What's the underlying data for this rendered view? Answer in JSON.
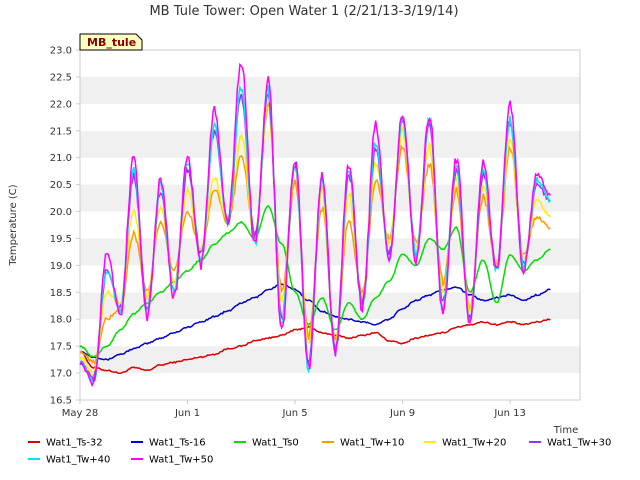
{
  "chart_data": {
    "type": "line",
    "title": "MB Tule Tower: Open Water 1 (2/21/13-3/19/14)",
    "xlabel": "Time",
    "ylabel": "Temperature (C)",
    "badge": "MB_tule",
    "xlim": [
      "May 28",
      "Jun 15"
    ],
    "ylim": [
      16.5,
      23.0
    ],
    "x_ticks": [
      "May 28",
      "Jun 1",
      "Jun 5",
      "Jun 9",
      "Jun 13"
    ],
    "y_ticks": [
      "16.5",
      "17.0",
      "17.5",
      "18.0",
      "18.5",
      "19.0",
      "19.5",
      "20.0",
      "20.5",
      "21.0",
      "21.5",
      "22.0",
      "22.5",
      "23.0"
    ],
    "grid": "horizontal bands",
    "legend_position": "bottom",
    "x_days": [
      0,
      0.5,
      1,
      1.5,
      2,
      2.5,
      3,
      3.5,
      4,
      4.5,
      5,
      5.5,
      6,
      6.5,
      7,
      7.5,
      8,
      8.5,
      9,
      9.5,
      10,
      10.5,
      11,
      11.5,
      12,
      12.5,
      13,
      13.5,
      14,
      14.5,
      15,
      15.5,
      16,
      16.5,
      17,
      17.5
    ],
    "series": [
      {
        "name": "Wat1_Ts-32",
        "color": "#dd0000",
        "values": [
          17.4,
          17.1,
          17.05,
          17.0,
          17.1,
          17.05,
          17.15,
          17.2,
          17.25,
          17.3,
          17.35,
          17.45,
          17.5,
          17.6,
          17.65,
          17.7,
          17.8,
          17.85,
          17.75,
          17.7,
          17.65,
          17.7,
          17.75,
          17.6,
          17.55,
          17.65,
          17.7,
          17.75,
          17.85,
          17.9,
          17.95,
          17.9,
          17.95,
          17.9,
          17.95,
          18.0
        ]
      },
      {
        "name": "Wat1_Ts-16",
        "color": "#0000cc",
        "values": [
          17.4,
          17.3,
          17.25,
          17.35,
          17.45,
          17.55,
          17.65,
          17.75,
          17.85,
          17.95,
          18.05,
          18.15,
          18.3,
          18.4,
          18.55,
          18.65,
          18.55,
          18.35,
          18.15,
          18.05,
          18.0,
          17.95,
          17.9,
          18.0,
          18.2,
          18.35,
          18.45,
          18.55,
          18.6,
          18.45,
          18.35,
          18.4,
          18.45,
          18.35,
          18.45,
          18.55
        ]
      },
      {
        "name": "Wat1_Ts0",
        "color": "#00dd00",
        "values": [
          17.5,
          17.3,
          17.5,
          17.8,
          18.1,
          18.3,
          18.5,
          18.7,
          18.9,
          19.1,
          19.4,
          19.6,
          19.8,
          19.5,
          20.1,
          19.4,
          18.5,
          17.9,
          18.4,
          17.8,
          18.3,
          18.0,
          18.4,
          18.7,
          19.2,
          19.0,
          19.5,
          19.3,
          19.7,
          18.5,
          19.1,
          18.3,
          19.2,
          18.9,
          19.1,
          19.3
        ]
      },
      {
        "name": "Wat1_Tw+10",
        "color": "#ff9900",
        "values": [
          17.4,
          17.2,
          18.0,
          18.2,
          19.6,
          18.5,
          19.8,
          18.9,
          20.0,
          19.3,
          20.4,
          19.8,
          21.0,
          19.6,
          21.9,
          18.5,
          20.5,
          17.7,
          20.1,
          17.6,
          19.8,
          18.5,
          20.6,
          19.5,
          21.2,
          19.4,
          20.9,
          18.7,
          20.4,
          18.2,
          20.3,
          19.0,
          21.2,
          19.2,
          19.9,
          19.7
        ]
      },
      {
        "name": "Wat1_Tw+20",
        "color": "#ffee00",
        "values": [
          17.3,
          17.0,
          18.5,
          18.3,
          20.0,
          18.4,
          20.1,
          18.7,
          20.4,
          19.3,
          20.6,
          19.8,
          21.4,
          19.5,
          22.0,
          18.3,
          20.8,
          17.5,
          20.4,
          17.5,
          20.3,
          18.4,
          20.9,
          19.4,
          21.5,
          19.3,
          21.2,
          18.5,
          20.6,
          18.1,
          20.5,
          19.0,
          21.4,
          19.1,
          20.2,
          19.9
        ]
      },
      {
        "name": "Wat1_Tw+30",
        "color": "#9933ff",
        "values": [
          17.2,
          16.9,
          18.9,
          18.2,
          20.7,
          18.2,
          20.4,
          18.5,
          20.8,
          19.2,
          21.5,
          19.8,
          22.2,
          19.5,
          22.2,
          18.0,
          20.9,
          17.2,
          20.6,
          17.4,
          20.7,
          18.3,
          21.2,
          19.2,
          21.7,
          19.2,
          21.6,
          18.3,
          20.8,
          18.0,
          20.7,
          18.9,
          21.7,
          19.0,
          20.5,
          20.2
        ]
      },
      {
        "name": "Wat1_Tw+40",
        "color": "#00e5ee",
        "values": [
          17.2,
          16.85,
          18.9,
          18.2,
          20.8,
          18.1,
          20.5,
          18.5,
          20.9,
          19.1,
          21.6,
          19.8,
          22.3,
          19.4,
          22.3,
          17.9,
          20.9,
          17.1,
          20.6,
          17.4,
          20.8,
          18.2,
          21.3,
          19.1,
          21.7,
          19.2,
          21.7,
          18.2,
          20.9,
          18.0,
          20.8,
          18.9,
          21.7,
          19.0,
          20.6,
          20.2
        ]
      },
      {
        "name": "Wat1_Tw+50",
        "color": "#ff00ff",
        "values": [
          17.2,
          16.8,
          19.2,
          18.1,
          21.0,
          18.0,
          20.6,
          18.4,
          21.0,
          19.0,
          21.9,
          19.8,
          22.8,
          19.4,
          22.4,
          17.8,
          21.0,
          17.05,
          20.7,
          17.35,
          20.9,
          18.2,
          21.6,
          19.1,
          21.8,
          19.1,
          21.8,
          18.1,
          21.0,
          17.9,
          20.9,
          18.9,
          22.0,
          18.9,
          20.7,
          20.3
        ]
      }
    ]
  }
}
